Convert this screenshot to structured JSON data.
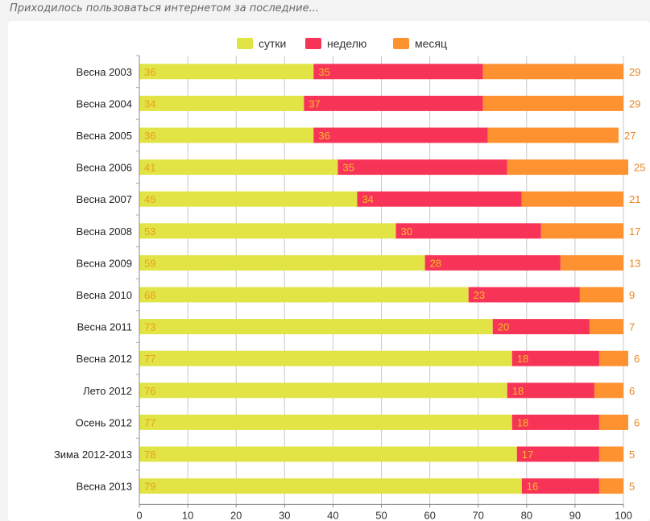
{
  "caption": "Приходилось пользоваться интернетом за последние...",
  "chart_data": {
    "type": "bar",
    "orientation": "horizontal",
    "stacked": true,
    "legend_position": "top-center",
    "grid": true,
    "xlim": [
      0,
      100
    ],
    "x_ticks": [
      0,
      10,
      20,
      30,
      40,
      50,
      60,
      70,
      80,
      90,
      100
    ],
    "categories": [
      "Весна 2003",
      "Весна 2004",
      "Весна 2005",
      "Весна 2006",
      "Весна 2007",
      "Весна 2008",
      "Весна 2009",
      "Весна 2010",
      "Весна 2011",
      "Весна 2012",
      "Лето 2012",
      "Осень 2012",
      "Зима 2012-2013",
      "Весна 2013"
    ],
    "series": [
      {
        "name": "сутки",
        "color": "#e1e444",
        "label_color": "#e8a020",
        "values": [
          36,
          34,
          36,
          41,
          45,
          53,
          59,
          68,
          73,
          77,
          76,
          77,
          78,
          79
        ]
      },
      {
        "name": "неделю",
        "color": "#f73457",
        "label_color": "#f0c020",
        "values": [
          35,
          37,
          36,
          35,
          34,
          30,
          28,
          23,
          20,
          18,
          18,
          18,
          17,
          16
        ]
      },
      {
        "name": "месяц",
        "color": "#fe9230",
        "label_color": "#e8841f",
        "values": [
          29,
          29,
          27,
          25,
          21,
          17,
          13,
          9,
          7,
          6,
          6,
          6,
          5,
          5
        ]
      }
    ]
  }
}
